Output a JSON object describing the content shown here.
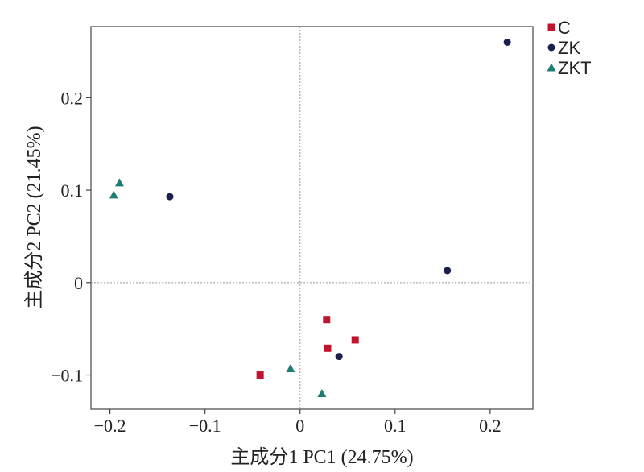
{
  "chart_data": {
    "type": "scatter",
    "xlabel": "主成分1 PC1 (24.75%)",
    "ylabel": "主成分2 PC2 (21.45%)",
    "xlim": [
      -0.22,
      0.245
    ],
    "ylim": [
      -0.137,
      0.277
    ],
    "x_ticks": [
      -0.2,
      -0.1,
      0,
      0.1,
      0.2
    ],
    "x_tick_labels": [
      "−0.2",
      "−0.1",
      "0",
      "0.1",
      "0.2"
    ],
    "y_ticks": [
      0.2,
      0.1,
      0,
      -0.1
    ],
    "y_tick_labels": [
      "0.2",
      "0.1",
      "0",
      "−0.1"
    ],
    "reference_lines": {
      "x": 0,
      "y": 0
    },
    "legend_position": "top-right",
    "series": [
      {
        "name": "C",
        "marker": "square",
        "color": "#c0142c",
        "points": [
          [
            0.028,
            -0.04
          ],
          [
            0.058,
            -0.062
          ],
          [
            0.029,
            -0.071
          ],
          [
            -0.042,
            -0.1
          ]
        ]
      },
      {
        "name": "ZK",
        "marker": "circle",
        "color": "#1a1f4d",
        "points": [
          [
            0.218,
            0.26
          ],
          [
            -0.137,
            0.093
          ],
          [
            0.155,
            0.013
          ],
          [
            0.041,
            -0.08
          ]
        ]
      },
      {
        "name": "ZKT",
        "marker": "triangle",
        "color": "#1f7d73",
        "points": [
          [
            -0.19,
            0.108
          ],
          [
            -0.196,
            0.095
          ],
          [
            -0.01,
            -0.093
          ],
          [
            0.023,
            -0.12
          ]
        ]
      }
    ]
  }
}
